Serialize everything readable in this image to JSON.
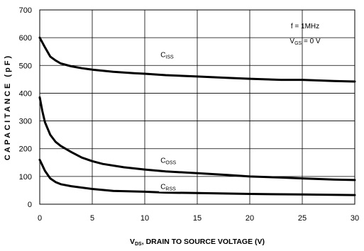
{
  "chart_data": {
    "type": "line",
    "xlabel_main": "V",
    "xlabel_sub": "DS",
    "xlabel_rest": ", DRAIN TO SOURCE VOLTAGE (V)",
    "ylabel": "CAPACITANCE (pF)",
    "xlim": [
      0,
      30
    ],
    "ylim": [
      0,
      700
    ],
    "xticks": [
      0,
      5,
      10,
      15,
      20,
      25,
      30
    ],
    "yticks": [
      0,
      100,
      200,
      300,
      400,
      500,
      600,
      700
    ],
    "grid": true,
    "conditions": {
      "line1": "f = 1MHz",
      "line2_main": "V",
      "line2_sub": "GS",
      "line2_rest": " = 0 V"
    },
    "series": [
      {
        "name_main": "C",
        "name_sub": "ISS",
        "label_at": [
          11.5,
          530
        ],
        "x": [
          0,
          0.5,
          1,
          1.5,
          2,
          3,
          4,
          5,
          7,
          9,
          10,
          12,
          15,
          18,
          20,
          23,
          25,
          28,
          30
        ],
        "y": [
          600,
          565,
          532,
          518,
          507,
          497,
          490,
          485,
          477,
          472,
          470,
          465,
          460,
          455,
          452,
          448,
          448,
          444,
          442
        ]
      },
      {
        "name_main": "C",
        "name_sub": "OSS",
        "label_at": [
          11.5,
          150
        ],
        "x": [
          0,
          0.25,
          0.5,
          1,
          1.5,
          2,
          3,
          4,
          5,
          6,
          8,
          10,
          12,
          15,
          18,
          20,
          23,
          25,
          28,
          30
        ],
        "y": [
          385,
          335,
          295,
          250,
          225,
          210,
          188,
          168,
          155,
          145,
          133,
          125,
          118,
          112,
          105,
          100,
          96,
          93,
          89,
          87
        ]
      },
      {
        "name_main": "C",
        "name_sub": "RSS",
        "label_at": [
          11.5,
          55
        ],
        "x": [
          0,
          0.25,
          0.5,
          1,
          1.5,
          2,
          3,
          5,
          7,
          10,
          12,
          15,
          20,
          25,
          30
        ],
        "y": [
          160,
          140,
          120,
          93,
          80,
          72,
          65,
          55,
          48,
          45,
          42,
          40,
          37,
          35,
          33
        ]
      }
    ]
  }
}
